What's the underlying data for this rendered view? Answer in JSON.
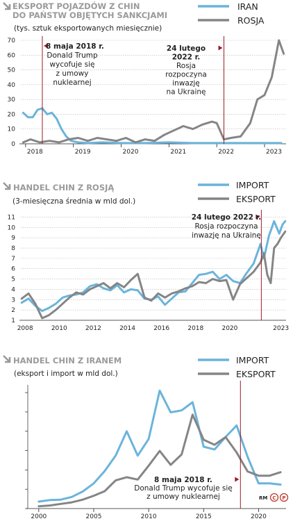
{
  "colors": {
    "iran": "#6ab4db",
    "rosja": "#858585",
    "marker": "#9b1b2a",
    "title": "#9a9a9a"
  },
  "icons": {
    "section": "arrow-down-right-icon",
    "copyright": "copyright-icon",
    "copyleft": "p-icon"
  },
  "credit": "RM",
  "chart_data": [
    {
      "type": "line",
      "title_lines": [
        "EKSPORT POJAZDÓW Z CHIN",
        "DO PAŃSTW OBJĘTYCH SANKCJAMI"
      ],
      "subtitle": "(tys. sztuk eksportowanych miesięcznie)",
      "xlim": [
        2017.9,
        2023.45
      ],
      "ylim": [
        0,
        70
      ],
      "yticks": [
        0,
        10,
        20,
        30,
        40,
        50,
        60,
        70
      ],
      "xticks": [
        2018,
        2019,
        2020,
        2021,
        2022,
        2023
      ],
      "series": [
        {
          "name": "IRAN",
          "color": "#6ab4db",
          "x": [
            2017.95,
            2018.05,
            2018.15,
            2018.25,
            2018.35,
            2018.45,
            2018.55,
            2018.65,
            2018.75,
            2018.85,
            2018.95,
            2019.1,
            2019.3,
            2019.6,
            2020.0,
            2020.5,
            2021.0,
            2021.5,
            2022.0,
            2022.5,
            2023.0,
            2023.35
          ],
          "y": [
            21,
            18,
            18,
            23,
            24,
            20,
            21,
            17,
            10,
            5,
            2,
            1,
            0.5,
            1,
            0.5,
            0.5,
            1,
            0.5,
            0.5,
            0.5,
            0.5,
            0.5
          ]
        },
        {
          "name": "ROSJA",
          "color": "#858585",
          "x": [
            2017.95,
            2018.1,
            2018.3,
            2018.5,
            2018.7,
            2018.9,
            2019.1,
            2019.3,
            2019.5,
            2019.7,
            2019.9,
            2020.1,
            2020.3,
            2020.5,
            2020.7,
            2020.9,
            2021.1,
            2021.3,
            2021.5,
            2021.7,
            2021.9,
            2022.0,
            2022.15,
            2022.3,
            2022.5,
            2022.7,
            2022.85,
            2023.0,
            2023.15,
            2023.3,
            2023.4
          ],
          "y": [
            1,
            3,
            1,
            2,
            1,
            3,
            4,
            2,
            4,
            3,
            2,
            4,
            1,
            3,
            2,
            6,
            9,
            12,
            10,
            13,
            15,
            14,
            3,
            4,
            5,
            14,
            30,
            33,
            45,
            70,
            61
          ]
        }
      ],
      "events": [
        {
          "x": 2018.35,
          "lines": [
            "8 maja 2018 r.",
            "Donald Trump",
            "wycofuje się",
            "z umowy",
            "nuklearnej"
          ]
        },
        {
          "x": 2022.15,
          "lines": [
            "24 lutego",
            "2022 r.",
            "Rosja",
            "rozpoczyna",
            "inwazję",
            "na Ukrainę"
          ]
        }
      ]
    },
    {
      "type": "line",
      "title_lines": [
        "HANDEL CHIN Z ROSJĄ"
      ],
      "subtitle": "(3-miesięczna średnia w mld dol.)",
      "xlim": [
        2007.75,
        2023.3
      ],
      "ylim": [
        1,
        11.3
      ],
      "yticks": [
        1,
        2,
        3,
        4,
        5,
        6,
        7,
        8,
        9,
        10,
        11
      ],
      "xticks": [
        2008,
        2010,
        2012,
        2014,
        2016,
        2018,
        2020,
        2023
      ],
      "series": [
        {
          "name": "IMPORT",
          "color": "#6ab4db",
          "x": [
            2007.8,
            2008.2,
            2008.6,
            2009.0,
            2009.4,
            2009.8,
            2010.2,
            2010.6,
            2011.0,
            2011.4,
            2011.8,
            2012.2,
            2012.6,
            2013.0,
            2013.4,
            2013.8,
            2014.2,
            2014.6,
            2015.0,
            2015.4,
            2015.8,
            2016.2,
            2016.6,
            2017.0,
            2017.4,
            2017.8,
            2018.2,
            2018.6,
            2019.0,
            2019.4,
            2019.8,
            2020.2,
            2020.6,
            2021.0,
            2021.4,
            2021.8,
            2022.0,
            2022.3,
            2022.6,
            2022.9,
            2023.1,
            2023.25
          ],
          "y": [
            2.7,
            3.1,
            2.4,
            1.9,
            2.2,
            2.6,
            3.2,
            3.4,
            3.5,
            3.7,
            4.3,
            4.5,
            4.1,
            3.9,
            4.4,
            3.7,
            4.0,
            3.9,
            3.1,
            3.0,
            3.3,
            2.5,
            3.1,
            3.7,
            3.8,
            4.6,
            5.4,
            5.5,
            5.7,
            5.0,
            5.4,
            4.8,
            4.6,
            5.6,
            6.5,
            8.4,
            7.0,
            9.2,
            10.6,
            9.4,
            10.3,
            10.6
          ]
        },
        {
          "name": "EKSPORT",
          "color": "#858585",
          "x": [
            2007.8,
            2008.2,
            2008.6,
            2009.0,
            2009.4,
            2009.8,
            2010.2,
            2010.6,
            2011.0,
            2011.4,
            2011.8,
            2012.2,
            2012.6,
            2013.0,
            2013.4,
            2013.8,
            2014.2,
            2014.6,
            2015.0,
            2015.4,
            2015.8,
            2016.2,
            2016.6,
            2017.0,
            2017.4,
            2017.8,
            2018.2,
            2018.6,
            2019.0,
            2019.4,
            2019.8,
            2020.2,
            2020.6,
            2021.0,
            2021.4,
            2021.8,
            2022.0,
            2022.2,
            2022.4,
            2022.6,
            2022.8,
            2023.0,
            2023.25
          ],
          "y": [
            3.1,
            3.6,
            2.6,
            1.2,
            1.5,
            2.0,
            2.6,
            3.2,
            3.7,
            3.5,
            4.0,
            4.3,
            4.6,
            4.1,
            4.6,
            4.2,
            4.9,
            5.5,
            3.2,
            2.9,
            3.6,
            3.2,
            3.6,
            3.8,
            4.1,
            4.3,
            4.7,
            4.6,
            5.0,
            4.8,
            4.9,
            3.0,
            4.5,
            5.1,
            5.7,
            6.6,
            7.5,
            5.4,
            4.6,
            8.0,
            8.4,
            9.0,
            9.6
          ]
        }
      ],
      "events": [
        {
          "x": 2021.85,
          "lines": [
            "24 lutego 2022 r.",
            "Rosja rozpoczyna",
            "inwazję na Ukrainę"
          ]
        }
      ]
    },
    {
      "type": "line",
      "title_lines": [
        "HANDEL CHIN Z IRANEM"
      ],
      "subtitle": "(eksport i import w mld dol.)",
      "xlim": [
        1999,
        2022.5
      ],
      "ylim": [
        0,
        32
      ],
      "xticks": [
        2000,
        2005,
        2010,
        2015,
        2020
      ],
      "series": [
        {
          "name": "IMPORT",
          "color": "#6ab4db",
          "x": [
            2000,
            2001,
            2002,
            2003,
            2004,
            2005,
            2006,
            2007,
            2008,
            2009,
            2010,
            2011,
            2012,
            2013,
            2014,
            2015,
            2016,
            2017,
            2018,
            2019,
            2020,
            2021,
            2022
          ],
          "y": [
            1.8,
            2.2,
            2.3,
            3.0,
            4.4,
            6.5,
            9.7,
            13.7,
            20.0,
            13.7,
            18.0,
            30.5,
            24.9,
            25.4,
            27.5,
            16.0,
            15.3,
            18.5,
            21.5,
            13.4,
            6.5,
            6.5,
            6.2
          ]
        },
        {
          "name": "EKSPORT",
          "color": "#858585",
          "x": [
            2000,
            2001,
            2002,
            2003,
            2004,
            2005,
            2006,
            2007,
            2008,
            2009,
            2010,
            2011,
            2012,
            2013,
            2014,
            2015,
            2016,
            2017,
            2018,
            2019,
            2020,
            2021,
            2022
          ],
          "y": [
            0.6,
            0.8,
            1.2,
            1.6,
            2.3,
            3.3,
            4.5,
            7.3,
            8.1,
            7.5,
            11.1,
            14.9,
            11.3,
            14.0,
            24.3,
            17.8,
            16.5,
            18.5,
            14.5,
            9.6,
            8.5,
            8.5,
            9.4
          ]
        }
      ],
      "events": [
        {
          "x": 2018.35,
          "lines": [
            "8 maja 2018 r.",
            "Donald Trump wycofuje się",
            "z umowy nuklearnej"
          ]
        }
      ]
    }
  ]
}
